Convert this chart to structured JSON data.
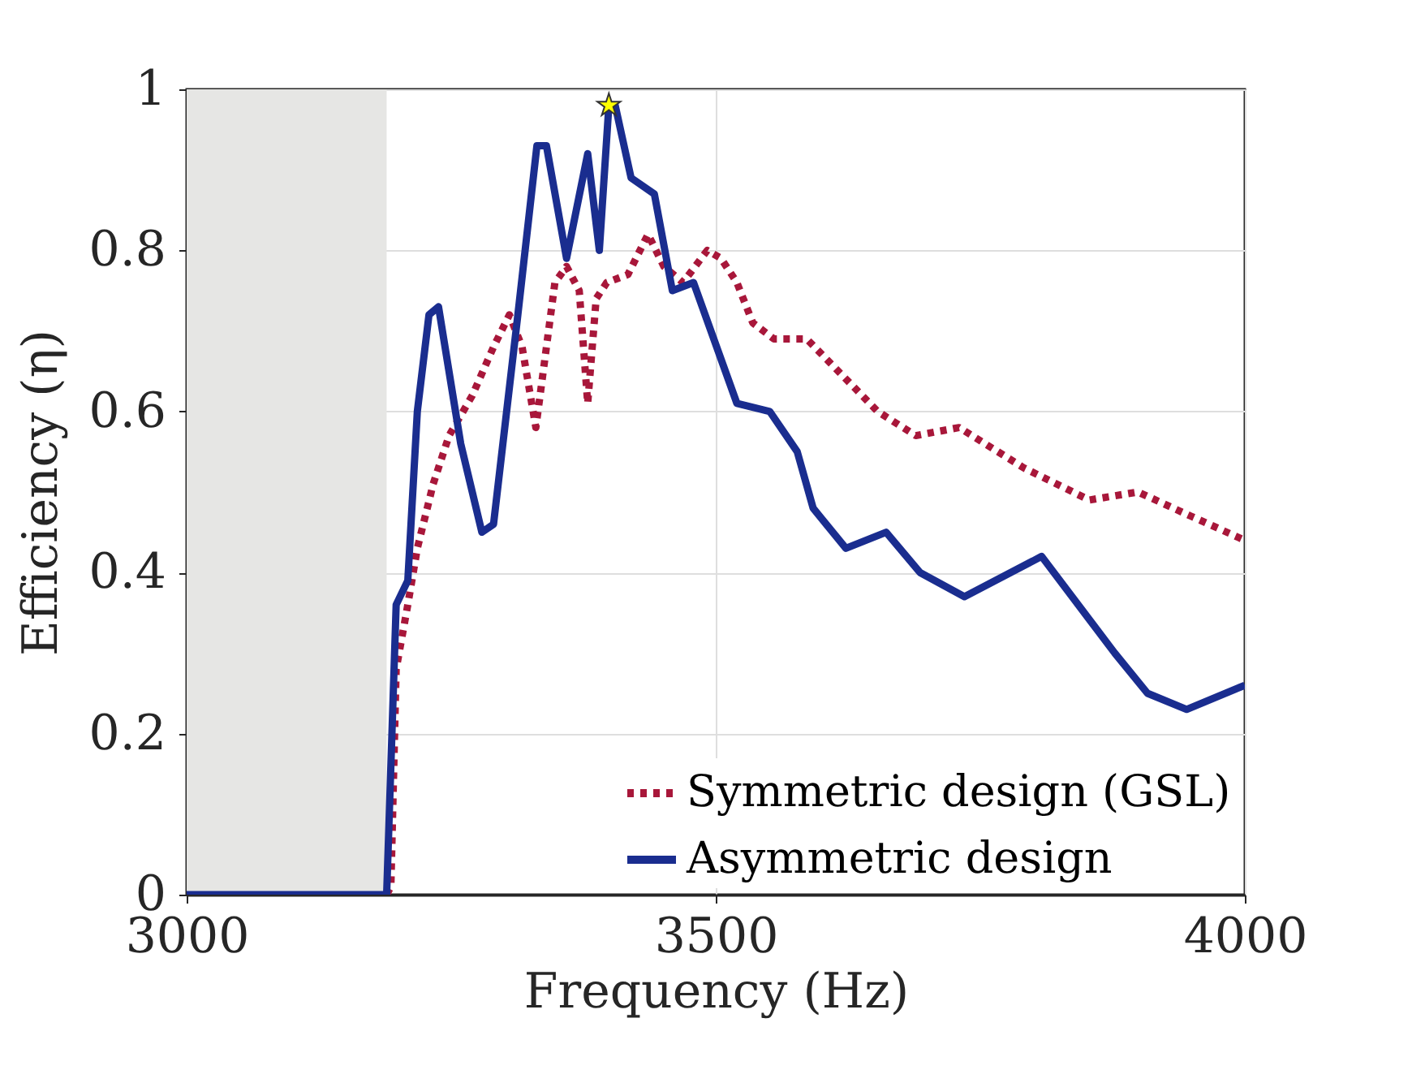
{
  "chart_data": {
    "type": "line",
    "xlabel": "Frequency (Hz)",
    "ylabel": "Efficiency (η)",
    "xlim": [
      3000,
      4000
    ],
    "xticks": [
      3000,
      3500,
      4000
    ],
    "ylim": [
      0,
      1
    ],
    "yticks": [
      0,
      0.2,
      0.4,
      0.6,
      0.8,
      1
    ],
    "grid": true,
    "legend": "bottom right",
    "bands": [
      {
        "axis": "x",
        "from": 3000,
        "to": 3189,
        "color": "#e6e6e4"
      }
    ],
    "series": [
      {
        "name": "Symmetric design (GSL)",
        "type": "line",
        "line_style": "dotted",
        "color": "#a8173a",
        "x": [
          3189,
          3193,
          3198,
          3209,
          3218,
          3233,
          3248,
          3270,
          3290,
          3305,
          3317,
          3330,
          3340,
          3348,
          3359,
          3371,
          3379,
          3387,
          3397,
          3417,
          3436,
          3451,
          3469,
          3492,
          3505,
          3520,
          3535,
          3555,
          3586,
          3653,
          3689,
          3730,
          3791,
          3853,
          3899,
          3949,
          4000
        ],
        "values": [
          0,
          0.01,
          0.28,
          0.36,
          0.43,
          0.51,
          0.57,
          0.62,
          0.68,
          0.72,
          0.68,
          0.58,
          0.68,
          0.76,
          0.78,
          0.75,
          0.61,
          0.74,
          0.76,
          0.77,
          0.82,
          0.78,
          0.76,
          0.8,
          0.79,
          0.76,
          0.71,
          0.69,
          0.69,
          0.6,
          0.57,
          0.58,
          0.53,
          0.49,
          0.5,
          0.47,
          0.44
        ]
      },
      {
        "name": "Asymmetric design",
        "type": "line",
        "line_style": "solid",
        "color": "#1a2d8f",
        "x": [
          3000,
          3189,
          3198,
          3209,
          3218,
          3229,
          3238,
          3259,
          3279,
          3290,
          3313,
          3331,
          3340,
          3359,
          3379,
          3390,
          3399,
          3405,
          3420,
          3442,
          3459,
          3479,
          3520,
          3551,
          3577,
          3592,
          3623,
          3661,
          3693,
          3735,
          3808,
          3877,
          3908,
          3945,
          4000
        ],
        "values": [
          0,
          0,
          0.36,
          0.39,
          0.6,
          0.72,
          0.73,
          0.56,
          0.45,
          0.46,
          0.72,
          0.93,
          0.93,
          0.79,
          0.92,
          0.8,
          0.98,
          0.98,
          0.89,
          0.87,
          0.75,
          0.76,
          0.61,
          0.6,
          0.55,
          0.48,
          0.43,
          0.45,
          0.4,
          0.37,
          0.42,
          0.3,
          0.25,
          0.23,
          0.26
        ]
      },
      {
        "type": "scatter",
        "marker": "star",
        "color": "#ffff00",
        "x": [
          3399
        ],
        "values": [
          0.98
        ]
      }
    ]
  }
}
